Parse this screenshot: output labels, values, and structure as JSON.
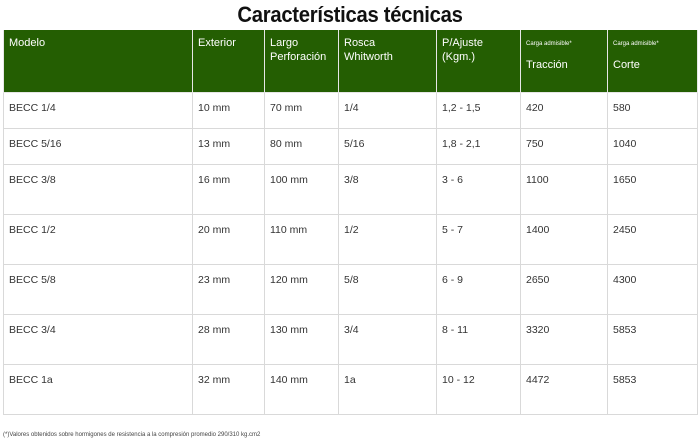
{
  "title": "Características técnicas",
  "table": {
    "headers": {
      "modelo": "Modelo",
      "exterior": "Exterior",
      "largo": [
        "Largo",
        "Perforación"
      ],
      "rosca": [
        "Rosca",
        "Whitworth"
      ],
      "ajuste": [
        "P/Ajuste",
        "(Kgm.)"
      ],
      "carga_traccion_note": "Carga admisible*",
      "carga_traccion": "Tracción",
      "carga_corte_note": "Carga admisible*",
      "carga_corte": "Corte"
    },
    "rows": [
      {
        "modelo": "BECC 1/4",
        "exterior": "10 mm",
        "largo": "70 mm",
        "rosca": "1/4",
        "ajuste": "1,2 - 1,5",
        "traccion": "420",
        "corte": "580"
      },
      {
        "modelo": "BECC 5/16",
        "exterior": "13 mm",
        "largo": "80 mm",
        "rosca": "5/16",
        "ajuste": "1,8 - 2,1",
        "traccion": "750",
        "corte": "1040"
      },
      {
        "modelo": "BECC 3/8",
        "exterior": "16 mm",
        "largo": "100 mm",
        "rosca": "3/8",
        "ajuste": "3 - 6",
        "traccion": "1100",
        "corte": "1650"
      },
      {
        "modelo": "BECC 1/2",
        "exterior": "20 mm",
        "largo": "110 mm",
        "rosca": "1/2",
        "ajuste": "5 - 7",
        "traccion": "1400",
        "corte": "2450"
      },
      {
        "modelo": "BECC 5/8",
        "exterior": "23 mm",
        "largo": "120 mm",
        "rosca": "5/8",
        "ajuste": "6 - 9",
        "traccion": "2650",
        "corte": "4300"
      },
      {
        "modelo": "BECC 3/4",
        "exterior": "28 mm",
        "largo": "130 mm",
        "rosca": "3/4",
        "ajuste": "8 - 11",
        "traccion": "3320",
        "corte": "5853"
      },
      {
        "modelo": "BECC 1a",
        "exterior": "32 mm",
        "largo": "140 mm",
        "rosca": "1a",
        "ajuste": "10 - 12",
        "traccion": "4472",
        "corte": "5853"
      }
    ]
  },
  "footnote": "(*)Valores obtenidos sobre hormigones de resistencia a la compresión promedio 290/310 kg.cm2",
  "colors": {
    "header_bg": "#245e02",
    "header_text": "#ffffff",
    "border": "#d9d9d9"
  }
}
